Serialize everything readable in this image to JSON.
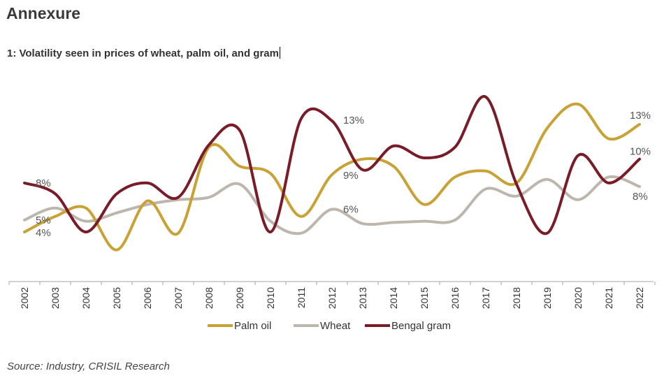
{
  "header": {
    "title": "Annexure",
    "subtitle": "1: Volatility seen in prices of wheat, palm oil, and gram"
  },
  "footer": {
    "source": "Source: Industry, CRISIL Research"
  },
  "chart_data": {
    "type": "line",
    "title": "1: Volatility seen in prices of wheat, palm oil, and gram",
    "xlabel": "",
    "ylabel": "",
    "unit": "%",
    "grid": false,
    "smooth": true,
    "legend_position": "bottom",
    "categories": [
      "2002",
      "2003",
      "2004",
      "2005",
      "2006",
      "2007",
      "2008",
      "2009",
      "2010",
      "2011",
      "2012",
      "2013",
      "2014",
      "2015",
      "2016",
      "2017",
      "2018",
      "2019",
      "2020",
      "2021",
      "2022"
    ],
    "series": [
      {
        "name": "Palm oil",
        "color": "#C9A236",
        "values": [
          4.0,
          5.3,
          6.0,
          2.5,
          6.6,
          3.9,
          11.1,
          9.5,
          8.9,
          5.3,
          8.8,
          10.1,
          9.5,
          6.3,
          8.6,
          9.1,
          8.1,
          12.7,
          14.7,
          11.8,
          13.0
        ]
      },
      {
        "name": "Wheat",
        "color": "#BDB6AD",
        "values": [
          5.0,
          6.0,
          4.9,
          5.6,
          6.3,
          6.7,
          6.9,
          8.0,
          4.9,
          3.9,
          5.9,
          4.7,
          4.8,
          4.9,
          5.0,
          7.6,
          7.0,
          8.4,
          6.7,
          8.6,
          7.8
        ]
      },
      {
        "name": "Bengal gram",
        "color": "#7A1C28",
        "values": [
          8.1,
          7.2,
          4.0,
          7.2,
          8.1,
          6.9,
          11.3,
          12.5,
          4.0,
          13.5,
          13.3,
          9.2,
          11.2,
          10.2,
          11.1,
          15.3,
          8.0,
          3.9,
          10.4,
          8.1,
          10.1
        ]
      }
    ],
    "data_labels": [
      {
        "series": "Bengal gram",
        "category": "2002",
        "text": "8%"
      },
      {
        "series": "Wheat",
        "category": "2002",
        "text": "5%"
      },
      {
        "series": "Palm oil",
        "category": "2002",
        "text": "4%"
      },
      {
        "series": "Bengal gram",
        "category": "2012",
        "text": "13%"
      },
      {
        "series": "Palm oil",
        "category": "2012",
        "text": "9%"
      },
      {
        "series": "Wheat",
        "category": "2012",
        "text": "6%"
      },
      {
        "series": "Palm oil",
        "category": "2022",
        "text": "13%"
      },
      {
        "series": "Bengal gram",
        "category": "2022",
        "text": "10%"
      },
      {
        "series": "Wheat",
        "category": "2022",
        "text": "8%"
      }
    ]
  }
}
